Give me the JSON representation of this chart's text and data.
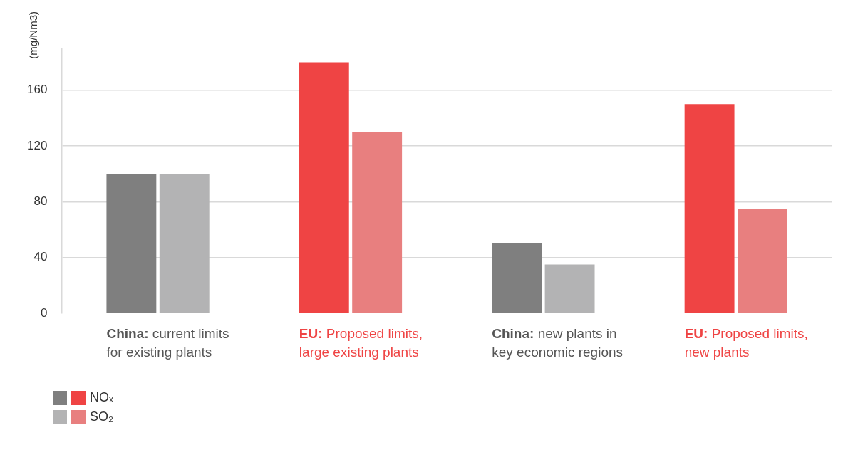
{
  "chart_data": {
    "type": "bar",
    "ylabel": "(mg/Nm3)",
    "categories": [
      "China: current limits for existing plants",
      "EU: Proposed limits, large existing plants",
      "China: new plants in key economic regions",
      "EU: Proposed limits, new plants"
    ],
    "series": [
      {
        "name": "NOₓ",
        "color": "#7f7f7f",
        "colors": [
          "#7f7f7f",
          "#ef4444",
          "#7f7f7f",
          "#ef4444"
        ],
        "values": [
          100,
          180,
          50,
          150
        ]
      },
      {
        "name": "SO₂",
        "color": "#b3b3b4",
        "colors": [
          "#b3b3b4",
          "#e87f7f",
          "#b3b3b4",
          "#e87f7f"
        ],
        "values": [
          100,
          130,
          35,
          75
        ]
      }
    ],
    "ylim": [
      0,
      190
    ],
    "yticks": [
      0,
      40,
      80,
      120,
      160
    ],
    "grid": "y",
    "legend": "bottom left"
  }
}
